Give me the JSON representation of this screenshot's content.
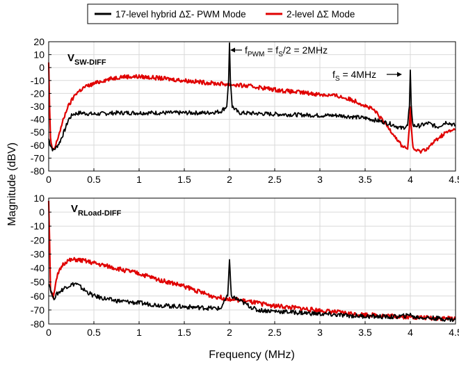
{
  "legend": {
    "entries": [
      {
        "label": "17-level hybrid ΔΣ- PWM Mode",
        "color": "#000000"
      },
      {
        "label": "2-level ΔΣ Mode",
        "color": "#e00000"
      }
    ]
  },
  "ylabel": "Magnitude (dBV)",
  "xlabel": "Frequency (MHz)",
  "chart_data": [
    {
      "type": "line",
      "panel_label": {
        "main": "V",
        "sub": "SW-DIFF"
      },
      "annotations": [
        {
          "text": "f_PWM = f_S/2 = 2MHz",
          "points_to_x": 2
        },
        {
          "text": "f_S = 4MHz",
          "points_to_x": 4
        }
      ],
      "xlim": [
        0,
        4.5
      ],
      "ylim": [
        -80,
        20
      ],
      "xticks": [
        "0",
        "0.5",
        "1",
        "1.5",
        "2",
        "2.5",
        "3",
        "3.5",
        "4",
        "4.5"
      ],
      "yticks": [
        "20",
        "10",
        "0",
        "-10",
        "-20",
        "-30",
        "-40",
        "-50",
        "-60",
        "-70",
        "-80"
      ],
      "grid": true,
      "series": [
        {
          "name": "17-level hybrid ΔΣ- PWM Mode",
          "color": "#000000",
          "x": [
            0.0,
            0.02,
            0.05,
            0.08,
            0.12,
            0.18,
            0.22,
            0.27,
            0.35,
            0.5,
            0.75,
            1.0,
            1.25,
            1.5,
            1.75,
            1.9,
            1.97,
            1.99,
            2.0,
            2.01,
            2.03,
            2.1,
            2.5,
            3.0,
            3.2,
            3.5,
            3.7,
            3.8,
            3.9,
            3.97,
            3.99,
            4.0,
            4.01,
            4.03,
            4.1,
            4.2,
            4.3,
            4.4,
            4.5
          ],
          "y": [
            -55,
            -60,
            -64,
            -62,
            -58,
            -48,
            -40,
            -36,
            -35,
            -36,
            -35,
            -35,
            -35,
            -35,
            -35,
            -34,
            -30,
            -10,
            19,
            -10,
            -30,
            -35,
            -36,
            -37,
            -37,
            -39,
            -42,
            -44,
            -47,
            -45,
            -30,
            -2,
            -30,
            -45,
            -45,
            -43,
            -46,
            -42,
            -45
          ]
        },
        {
          "name": "2-level ΔΣ Mode",
          "color": "#e00000",
          "x": [
            0.0,
            0.01,
            0.02,
            0.04,
            0.07,
            0.12,
            0.2,
            0.3,
            0.4,
            0.6,
            0.8,
            1.0,
            1.2,
            1.5,
            1.8,
            2.0,
            2.3,
            2.6,
            2.9,
            3.2,
            3.4,
            3.6,
            3.8,
            3.9,
            3.97,
            3.99,
            4.0,
            4.01,
            4.03,
            4.1,
            4.2,
            4.3,
            4.4,
            4.5
          ],
          "y": [
            4,
            -30,
            -55,
            -64,
            -62,
            -50,
            -32,
            -20,
            -15,
            -10,
            -7,
            -7,
            -8,
            -10,
            -12,
            -13,
            -15,
            -18,
            -20,
            -22,
            -26,
            -33,
            -50,
            -60,
            -63,
            -45,
            -31,
            -45,
            -63,
            -65,
            -62,
            -55,
            -50,
            -48
          ]
        }
      ]
    },
    {
      "type": "line",
      "panel_label": {
        "main": "V",
        "sub": "RLoad-DIFF"
      },
      "xlim": [
        0,
        4.5
      ],
      "ylim": [
        -80,
        10
      ],
      "xticks": [
        "0",
        "0.5",
        "1",
        "1.5",
        "2",
        "2.5",
        "3",
        "3.5",
        "4",
        "4.5"
      ],
      "yticks": [
        "10",
        "0",
        "-10",
        "-20",
        "-30",
        "-40",
        "-50",
        "-60",
        "-70",
        "-80"
      ],
      "grid": true,
      "series": [
        {
          "name": "17-level hybrid ΔΣ- PWM Mode",
          "color": "#000000",
          "x": [
            0.0,
            0.05,
            0.1,
            0.2,
            0.3,
            0.4,
            0.5,
            0.7,
            1.0,
            1.3,
            1.6,
            1.9,
            1.98,
            2.0,
            2.02,
            2.3,
            2.8,
            3.3,
            3.8,
            3.98,
            4.0,
            4.02,
            4.3,
            4.5
          ],
          "y": [
            -50,
            -62,
            -58,
            -53,
            -51,
            -56,
            -60,
            -63,
            -65,
            -67,
            -68,
            -69,
            -60,
            -34,
            -60,
            -70,
            -72,
            -74,
            -75,
            -74,
            -72,
            -75,
            -76,
            -77
          ]
        },
        {
          "name": "2-level ΔΣ Mode",
          "color": "#e00000",
          "x": [
            0.0,
            0.01,
            0.02,
            0.05,
            0.1,
            0.15,
            0.2,
            0.3,
            0.4,
            0.6,
            0.8,
            1.0,
            1.2,
            1.5,
            1.8,
            2.0,
            2.2,
            2.5,
            2.8,
            3.1,
            3.4,
            3.7,
            4.0,
            4.3,
            4.5
          ],
          "y": [
            8,
            -20,
            -55,
            -60,
            -45,
            -38,
            -35,
            -34,
            -35,
            -38,
            -41,
            -44,
            -48,
            -53,
            -60,
            -62,
            -64,
            -67,
            -69,
            -71,
            -73,
            -74,
            -75,
            -76,
            -76
          ]
        }
      ]
    }
  ]
}
